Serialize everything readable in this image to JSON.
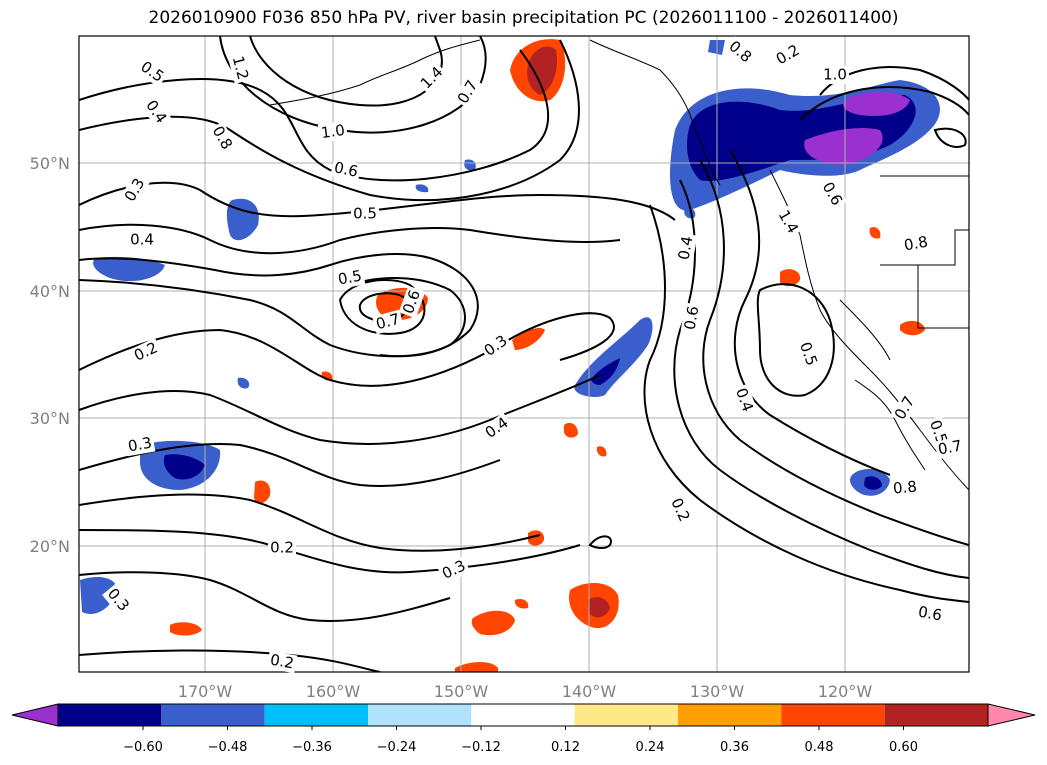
{
  "title": "2026010900 F036 850 hPa PV, river basin precipitation PC (2026011100 - 2026011400)",
  "map": {
    "lon_labels": [
      "170°W",
      "160°W",
      "150°W",
      "140°W",
      "130°W",
      "120°W"
    ],
    "lat_labels": [
      "50°N",
      "40°N",
      "30°N",
      "20°N"
    ],
    "contour_labels": [
      "0.5",
      "0.4",
      "1.2",
      "1.4",
      "0.7",
      "0.8",
      "1.0",
      "0.6",
      "0.3",
      "0.5",
      "0.4",
      "0.5",
      "0.7",
      "0.6",
      "0.2",
      "0.3",
      "0.4",
      "0.3",
      "0.2",
      "0.3",
      "0.3",
      "0.2",
      "0.2",
      "0.4",
      "0.6",
      "0.5",
      "0.4",
      "0.7",
      "0.3",
      "0.6",
      "0.8",
      "1.4",
      "0.8",
      "0.6",
      "0.5",
      "0.7",
      "0.8",
      "0.6",
      "0.2",
      "1.0"
    ]
  },
  "colorbar": {
    "ticks": [
      "−0.60",
      "−0.48",
      "−0.36",
      "−0.24",
      "−0.12",
      "0.12",
      "0.24",
      "0.36",
      "0.48",
      "0.60"
    ],
    "colors": [
      "#9a30d0",
      "#00008b",
      "#3a5fcd",
      "#00bfff",
      "#aee3fb",
      "#ffffff",
      "#ffe88a",
      "#ffa000",
      "#ff4500",
      "#b22222",
      "#ff88aa"
    ]
  }
}
